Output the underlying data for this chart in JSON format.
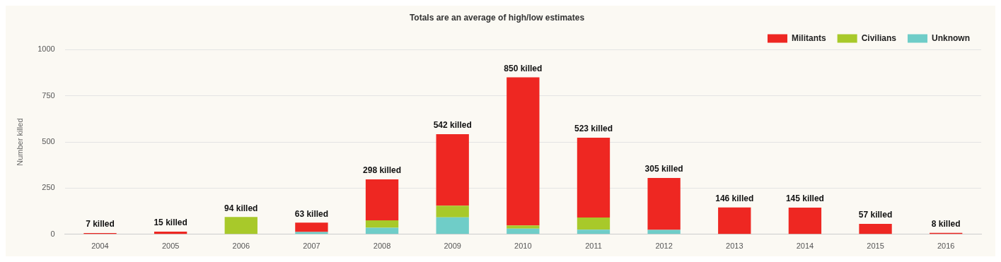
{
  "chart_data": {
    "type": "bar",
    "title": "Totals are an average of high/low estimates",
    "ylabel": "Number killed",
    "categories": [
      "2004",
      "2005",
      "2006",
      "2007",
      "2008",
      "2009",
      "2010",
      "2011",
      "2012",
      "2013",
      "2014",
      "2015",
      "2016"
    ],
    "stacked": true,
    "series": [
      {
        "name": "Unknown",
        "color": "#6fcdc8",
        "values": [
          0,
          0,
          0,
          13,
          36,
          92,
          31,
          25,
          24,
          0,
          0,
          0,
          0
        ]
      },
      {
        "name": "Civilians",
        "color": "#a8c92a",
        "values": [
          0,
          0,
          94,
          0,
          40,
          63,
          17,
          66,
          0,
          0,
          0,
          0,
          0
        ]
      },
      {
        "name": "Militants",
        "color": "#ee2722",
        "values": [
          7,
          15,
          0,
          50,
          222,
          387,
          802,
          432,
          281,
          146,
          145,
          57,
          8
        ]
      }
    ],
    "totals": [
      "7 killed",
      "15 killed",
      "94 killed",
      "63 killed",
      "298 killed",
      "542 killed",
      "850 killed",
      "523 killed",
      "305 killed",
      "146 killed",
      "145 killed",
      "57 killed",
      "8 killed"
    ],
    "ylim": [
      0,
      1000
    ],
    "yticks": [
      0,
      250,
      500,
      750,
      1000
    ],
    "grid": "y",
    "legend": "top right"
  }
}
